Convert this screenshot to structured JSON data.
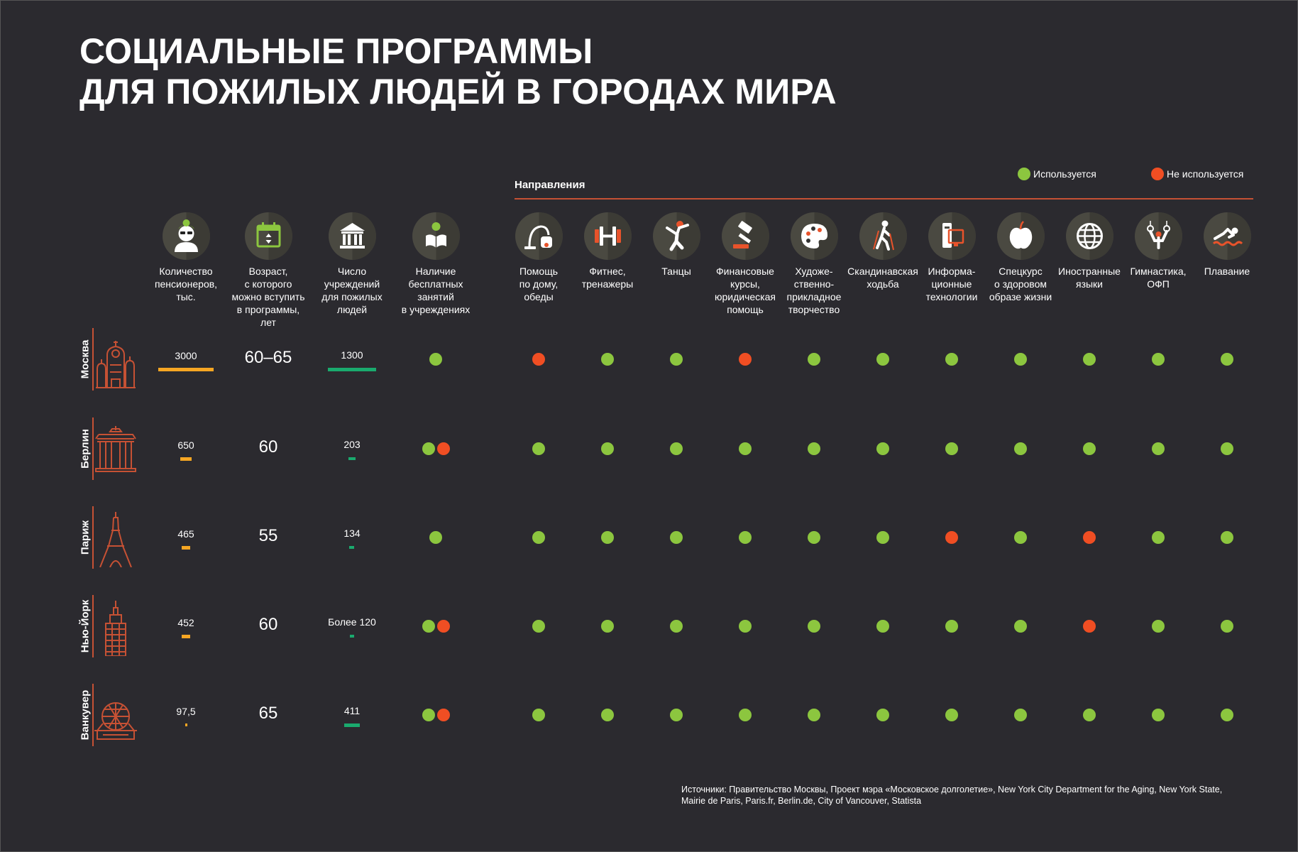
{
  "title": {
    "line1": "СОЦИАЛЬНЫЕ ПРОГРАММЫ",
    "line2": "ДЛЯ ПОЖИЛЫХ ЛЮДЕЙ В ГОРОДАХ МИРА"
  },
  "colors": {
    "background": "#2b2a2f",
    "used": "#8cc63f",
    "not_used": "#f04e23",
    "pensioners_bar": "#f6a623",
    "institutions_bar": "#1aaa6e",
    "accent_line": "#c65134",
    "icon_bg": "#4a4941"
  },
  "legend": {
    "used": "Используется",
    "not_used": "Не используется"
  },
  "directions_label": "Направления",
  "chart_data": {
    "type": "table",
    "title": "СОЦИАЛЬНЫЕ ПРОГРАММЫ ДЛЯ ПОЖИЛЫХ ЛЮДЕЙ В ГОРОДАХ МИРА",
    "stat_columns": [
      {
        "key": "pensioners",
        "icon": "elderly-person-icon",
        "label": "Количество\nпенсионеров,\nтыс."
      },
      {
        "key": "age",
        "icon": "calendar-icon",
        "label": "Возраст,\nс которого\nможно вступить\nв программы,\nлет"
      },
      {
        "key": "institutions",
        "icon": "institution-building-icon",
        "label": "Число\nучреждений\nдля пожилых\nлюдей"
      },
      {
        "key": "free_classes",
        "icon": "reading-person-icon",
        "label": "Наличие\nбесплатных\nзанятий\nв учреждениях"
      }
    ],
    "direction_columns": [
      {
        "icon": "vacuum-cleaner-icon",
        "label": "Помощь\nпо дому,\nобеды"
      },
      {
        "icon": "dumbbell-icon",
        "label": "Фитнес,\nтренажеры"
      },
      {
        "icon": "dancer-icon",
        "label": "Танцы"
      },
      {
        "icon": "gavel-icon",
        "label": "Финансовые\nкурсы,\nюридическая\nпомощь"
      },
      {
        "icon": "palette-icon",
        "label": "Художе-\nственно-\nприкладное\nтворчество"
      },
      {
        "icon": "nordic-walking-icon",
        "label": "Скандинавская\nходьба"
      },
      {
        "icon": "computer-icon",
        "label": "Информа-\nционные\nтехнологии"
      },
      {
        "icon": "apple-icon",
        "label": "Спецкурс\nо здоровом\nобразе жизни"
      },
      {
        "icon": "globe-icon",
        "label": "Иностранные\nязыки"
      },
      {
        "icon": "gymnastics-rings-icon",
        "label": "Гимнастика,\nОФП"
      },
      {
        "icon": "swimmer-icon",
        "label": "Плавание"
      }
    ],
    "rows": [
      {
        "city": "Москва",
        "city_icon": "moscow-kremlin-icon",
        "pensioners_label": "3000",
        "pensioners_value": 3000,
        "age": "60–65",
        "institutions_label": "1300",
        "institutions_value": 1300,
        "free_classes": [
          "used"
        ],
        "directions": [
          "not_used",
          "used",
          "used",
          "not_used",
          "used",
          "used",
          "used",
          "used",
          "used",
          "used",
          "used"
        ]
      },
      {
        "city": "Берлин",
        "city_icon": "brandenburg-gate-icon",
        "pensioners_label": "650",
        "pensioners_value": 650,
        "age": "60",
        "institutions_label": "203",
        "institutions_value": 203,
        "free_classes": [
          "used",
          "not_used"
        ],
        "directions": [
          "used",
          "used",
          "used",
          "used",
          "used",
          "used",
          "used",
          "used",
          "used",
          "used",
          "used"
        ]
      },
      {
        "city": "Париж",
        "city_icon": "eiffel-tower-icon",
        "pensioners_label": "465",
        "pensioners_value": 465,
        "age": "55",
        "institutions_label": "134",
        "institutions_value": 134,
        "free_classes": [
          "used"
        ],
        "directions": [
          "used",
          "used",
          "used",
          "used",
          "used",
          "used",
          "not_used",
          "used",
          "not_used",
          "used",
          "used"
        ]
      },
      {
        "city": "Нью-Йорк",
        "city_icon": "skyscraper-icon",
        "pensioners_label": "452",
        "pensioners_value": 452,
        "age": "60",
        "institutions_label": "Более 120",
        "institutions_value": 120,
        "free_classes": [
          "used",
          "not_used"
        ],
        "directions": [
          "used",
          "used",
          "used",
          "used",
          "used",
          "used",
          "used",
          "used",
          "not_used",
          "used",
          "used"
        ]
      },
      {
        "city": "Ванкувер",
        "city_icon": "science-world-dome-icon",
        "pensioners_label": "97,5",
        "pensioners_value": 97.5,
        "age": "65",
        "institutions_label": "411",
        "institutions_value": 411,
        "free_classes": [
          "used",
          "not_used"
        ],
        "directions": [
          "used",
          "used",
          "used",
          "used",
          "used",
          "used",
          "used",
          "used",
          "used",
          "used",
          "used"
        ]
      }
    ]
  },
  "sources": "Источники: Правительство Москвы, Проект мэра «Московское долголетие», New York City Department for the Aging, New York State, Mairie de Paris, Paris.fr, Berlin.de, City of Vancouver, Statista"
}
